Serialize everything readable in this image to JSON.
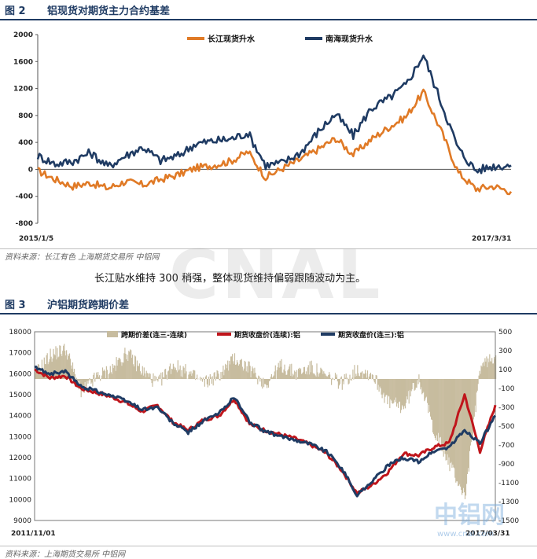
{
  "figure2": {
    "number": "图 2",
    "title": "铝现货对期货主力合约基差",
    "source": "资料来源：长江有色  上海期货交易所  中铝网"
  },
  "commentary": "长江贴水维持 300 稍强，整体现货维持偏弱跟随波动为主。",
  "figure3": {
    "number": "图 3",
    "title": "沪铝期货跨期价差",
    "source": "资料来源：上海期货交易所  中铝网"
  },
  "watermark": {
    "center_text": "CNAL",
    "logo_text": "中铝网",
    "logo_url": "www.cnal.com"
  },
  "colors": {
    "orange": "#e07a26",
    "navy": "#1f3b63",
    "red": "#c0151b",
    "spread": "#c7bc9f",
    "header": "#1f3b63"
  },
  "chart_data": [
    {
      "type": "line",
      "x_start_label": "2015/1/5",
      "x_end_label": "2017/3/31",
      "ylim": [
        -800,
        2000
      ],
      "yticks": [
        -800,
        -400,
        0,
        400,
        800,
        1200,
        1600,
        2000
      ],
      "legend_position": "top",
      "grid": false,
      "x_index": [
        0,
        20,
        40,
        60,
        80,
        100,
        120,
        140,
        160,
        180,
        200,
        220,
        240,
        260,
        280,
        300,
        320,
        340,
        360,
        380,
        400,
        420,
        440,
        460,
        480,
        500,
        520,
        540
      ],
      "series": [
        {
          "name": "长江现货升水",
          "color": "#e07a26",
          "values": [
            -20,
            -150,
            -250,
            -200,
            -280,
            -180,
            -230,
            -150,
            -80,
            20,
            60,
            120,
            260,
            -120,
            20,
            150,
            300,
            460,
            220,
            440,
            620,
            780,
            1150,
            580,
            -50,
            -290,
            -250,
            -330
          ]
        },
        {
          "name": "南海现货升水",
          "color": "#1f3b63",
          "values": [
            200,
            80,
            120,
            250,
            40,
            200,
            330,
            130,
            200,
            380,
            420,
            450,
            540,
            60,
            100,
            250,
            560,
            820,
            500,
            900,
            1050,
            1250,
            1700,
            1000,
            300,
            -20,
            50,
            60
          ]
        }
      ]
    },
    {
      "type": "line",
      "x_start_label": "2011/11/01",
      "x_end_label": "2017/03/31",
      "ylim": [
        9000,
        18000
      ],
      "yticks": [
        9000,
        10000,
        11000,
        12000,
        13000,
        14000,
        15000,
        16000,
        17000,
        18000
      ],
      "y2lim": [
        -1500,
        500
      ],
      "y2ticks": [
        -1500,
        -1300,
        -1100,
        -900,
        -700,
        -500,
        -300,
        -100,
        100,
        300,
        500
      ],
      "legend_position": "top",
      "grid": false,
      "x_index": [
        0,
        20,
        40,
        60,
        80,
        100,
        120,
        140,
        160,
        180,
        200,
        220,
        240,
        260,
        280,
        300,
        320,
        340,
        360,
        380,
        400,
        420,
        440,
        460,
        480,
        500,
        520,
        540,
        560,
        580,
        600
      ],
      "series": [
        {
          "name": "跨期价差(连三-连续)",
          "type": "bar",
          "axis": "right",
          "color": "#c7bc9f",
          "values": [
            50,
            250,
            320,
            -150,
            20,
            100,
            280,
            80,
            -50,
            150,
            60,
            -40,
            40,
            220,
            100,
            -60,
            140,
            60,
            120,
            20,
            -40,
            100,
            40,
            -250,
            -300,
            20,
            -550,
            -900,
            -1250,
            130,
            250
          ]
        },
        {
          "name": "期货收盘价(连续):铝",
          "axis": "left",
          "color": "#c0151b",
          "values": [
            16200,
            15800,
            15900,
            15300,
            15100,
            14900,
            14600,
            14200,
            14500,
            13700,
            13300,
            13800,
            14000,
            14800,
            13600,
            13300,
            13100,
            12900,
            12600,
            12200,
            11400,
            10300,
            10700,
            11300,
            12200,
            12100,
            12500,
            12700,
            15000,
            12300,
            14500
          ]
        },
        {
          "name": "期货收盘价(连三):铝",
          "axis": "left",
          "color": "#1f3b63",
          "values": [
            16300,
            16000,
            16100,
            15400,
            15200,
            14950,
            14700,
            14300,
            14400,
            13650,
            13200,
            13750,
            14100,
            14900,
            13700,
            13250,
            13000,
            12850,
            12650,
            12300,
            11500,
            10200,
            10900,
            11600,
            12000,
            11800,
            12300,
            12500,
            13300,
            12700,
            14000
          ]
        }
      ]
    }
  ]
}
